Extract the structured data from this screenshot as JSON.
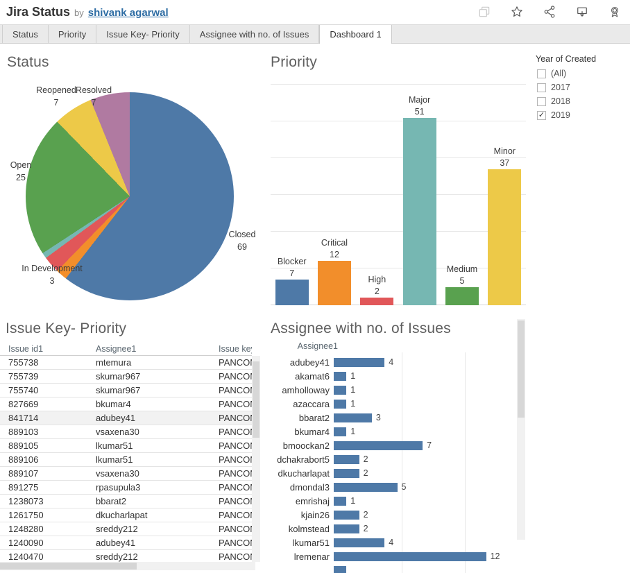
{
  "header": {
    "title": "Jira Status",
    "byline": "by",
    "author": "shivank agarwal",
    "icons": [
      "copy-icon",
      "star-icon",
      "share-icon",
      "download-icon",
      "badge-icon"
    ]
  },
  "tabs": [
    {
      "label": "Status",
      "active": false
    },
    {
      "label": "Priority",
      "active": false
    },
    {
      "label": "Issue Key- Priority",
      "active": false
    },
    {
      "label": "Assignee with no. of Issues",
      "active": false
    },
    {
      "label": "Dashboard 1",
      "active": true
    }
  ],
  "filter": {
    "title": "Year of Created",
    "options": [
      {
        "label": "(All)",
        "checked": false
      },
      {
        "label": "2017",
        "checked": false
      },
      {
        "label": "2018",
        "checked": false
      },
      {
        "label": "2019",
        "checked": true
      }
    ]
  },
  "chart_data": [
    {
      "type": "pie",
      "title": "Status",
      "start_angle": "top",
      "direction": "clockwise",
      "total": 114,
      "slices": [
        {
          "label": "Closed",
          "value": 69,
          "color": "#4e79a7"
        },
        {
          "label": "",
          "value": 2,
          "color": "#f28e2b"
        },
        {
          "label": "In Development",
          "value": 3,
          "color": "#e15759"
        },
        {
          "label": "",
          "value": 1,
          "color": "#76b7b2"
        },
        {
          "label": "Open",
          "value": 25,
          "color": "#59a14f"
        },
        {
          "label": "Reopened",
          "value": 7,
          "color": "#edc948"
        },
        {
          "label": "Resolved",
          "value": 7,
          "color": "#b07aa1"
        }
      ]
    },
    {
      "type": "bar",
      "title": "Priority",
      "categories": [
        "Blocker",
        "Critical",
        "High",
        "Major",
        "Medium",
        "Minor"
      ],
      "values": [
        7,
        12,
        2,
        51,
        5,
        37
      ],
      "colors": [
        "#4e79a7",
        "#f28e2b",
        "#e15759",
        "#76b7b2",
        "#59a14f",
        "#edc948"
      ],
      "ylim": [
        0,
        60
      ],
      "gridline_step": 10,
      "grid": true
    },
    {
      "type": "bar-horizontal",
      "title": "Assignee with no. of Issues",
      "field": "Assignee1",
      "categories": [
        "adubey41",
        "akamat6",
        "amholloway",
        "azaccara",
        "bbarat2",
        "bkumar4",
        "bmoockan2",
        "dchakrabort5",
        "dkucharlapat",
        "dmondal3",
        "emrishaj",
        "kjain26",
        "kolmstead",
        "lkumar51",
        "lremenar"
      ],
      "values": [
        4,
        1,
        1,
        1,
        3,
        1,
        7,
        2,
        2,
        5,
        1,
        2,
        2,
        4,
        12
      ],
      "bar_color": "#4e79a7",
      "xlim": [
        0,
        15
      ],
      "gridlines_at": [
        5,
        10
      ],
      "clipped_next_row_value": 1
    },
    {
      "type": "table",
      "title": "Issue Key- Priority",
      "columns": [
        "Issue id1",
        "Assignee1",
        "Issue key"
      ],
      "highlighted_row": 4,
      "rows": [
        [
          "755738",
          "mtemura",
          "PANCON"
        ],
        [
          "755739",
          "skumar967",
          "PANCON"
        ],
        [
          "755740",
          "skumar967",
          "PANCON"
        ],
        [
          "827669",
          "bkumar4",
          "PANCON"
        ],
        [
          "841714",
          "adubey41",
          "PANCON"
        ],
        [
          "889103",
          "vsaxena30",
          "PANCON"
        ],
        [
          "889105",
          "lkumar51",
          "PANCON"
        ],
        [
          "889106",
          "lkumar51",
          "PANCON"
        ],
        [
          "889107",
          "vsaxena30",
          "PANCON"
        ],
        [
          "891275",
          "rpasupula3",
          "PANCON"
        ],
        [
          "1238073",
          "bbarat2",
          "PANCON"
        ],
        [
          "1261750",
          "dkucharlapat",
          "PANCON"
        ],
        [
          "1248280",
          "sreddy212",
          "PANCON"
        ],
        [
          "1240090",
          "adubey41",
          "PANCON"
        ],
        [
          "1240470",
          "sreddy212",
          "PANCON"
        ]
      ]
    }
  ]
}
